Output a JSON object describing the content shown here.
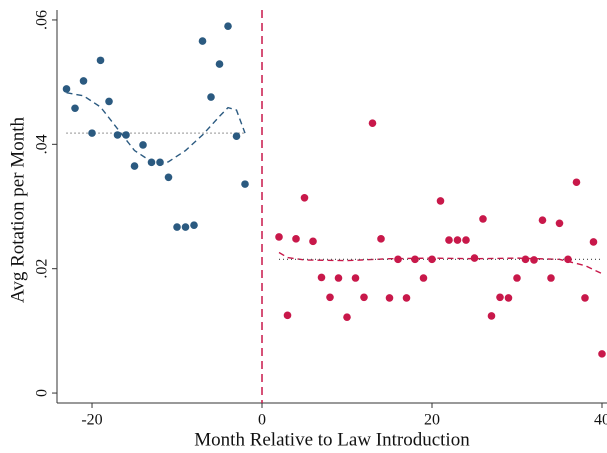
{
  "chart_data": {
    "type": "scatter",
    "xlabel": "Month Relative to Law Introduction",
    "ylabel": "Avg Rotation per Month",
    "xlim": [
      -24.12,
      40.59
    ],
    "ylim": [
      -0.0016,
      0.0616
    ],
    "xticks": [
      -20,
      0,
      20,
      40
    ],
    "yticks": [
      0,
      {
        "value": 0.02,
        "label": ".02"
      },
      {
        "value": 0.04,
        "label": ".04"
      },
      {
        "value": 0.06,
        "label": ".06"
      }
    ],
    "xline": {
      "value": 0,
      "color": "#c8184a"
    },
    "series": [
      {
        "color": "#2b5a80",
        "x": [
          -23,
          -22,
          -21,
          -20,
          -19,
          -18,
          -17,
          -16,
          -15,
          -14,
          -13,
          -12,
          -11,
          -10,
          -9,
          -8,
          -7,
          -6,
          -5,
          -4,
          -3,
          -2
        ],
        "values": [
          0.0489,
          0.0458,
          0.0502,
          0.0418,
          0.0535,
          0.0469,
          0.0415,
          0.0415,
          0.0365,
          0.0399,
          0.0371,
          0.0371,
          0.0347,
          0.0267,
          0.0267,
          0.027,
          0.0566,
          0.0476,
          0.0529,
          0.059,
          0.0413,
          0.0336
        ]
      },
      {
        "color": "#c8184a",
        "x": [
          2,
          3,
          4,
          5,
          6,
          7,
          8,
          9,
          10,
          11,
          12,
          13,
          14,
          15,
          16,
          17,
          18,
          19,
          20,
          21,
          22,
          23,
          24,
          25,
          26,
          27,
          28,
          29,
          30,
          31,
          32,
          33,
          34,
          35,
          36,
          37,
          38,
          39,
          40
        ],
        "values": [
          0.0251,
          0.0125,
          0.0248,
          0.0314,
          0.0244,
          0.0186,
          0.0154,
          0.0185,
          0.0122,
          0.0185,
          0.0154,
          0.0434,
          0.0248,
          0.0153,
          0.0215,
          0.0153,
          0.0215,
          0.0185,
          0.0215,
          0.0309,
          0.0246,
          0.0246,
          0.0246,
          0.0217,
          0.028,
          0.0124,
          0.0154,
          0.0153,
          0.0185,
          0.0215,
          0.0214,
          0.0278,
          0.0185,
          0.0273,
          0.0215,
          0.0339,
          0.0153,
          0.0243,
          0.0063
        ]
      }
    ],
    "lines": [
      {
        "color": "#2b5a80",
        "style": "dashed",
        "x": [
          -23,
          -21,
          -19,
          -17,
          -15,
          -13,
          -12,
          -11,
          -9,
          -7,
          -5,
          -4,
          -3,
          -2
        ],
        "values": [
          0.0483,
          0.0478,
          0.046,
          0.0425,
          0.039,
          0.0372,
          0.0367,
          0.0372,
          0.039,
          0.0415,
          0.0445,
          0.0459,
          0.0455,
          0.0418
        ]
      },
      {
        "color": "#c8184a",
        "style": "dashed",
        "x": [
          2,
          3,
          5,
          10,
          15,
          20,
          25,
          30,
          35,
          38,
          40
        ],
        "values": [
          0.0226,
          0.0218,
          0.0214,
          0.0213,
          0.0216,
          0.0217,
          0.0216,
          0.0217,
          0.0215,
          0.0205,
          0.0192
        ]
      },
      {
        "color": "#555555",
        "style": "dotted",
        "x": [
          -23,
          -2
        ],
        "values": [
          0.0418,
          0.0418
        ]
      },
      {
        "color": "#555555",
        "style": "dotted",
        "x": [
          2,
          40
        ],
        "values": [
          0.0215,
          0.0215
        ]
      }
    ]
  }
}
